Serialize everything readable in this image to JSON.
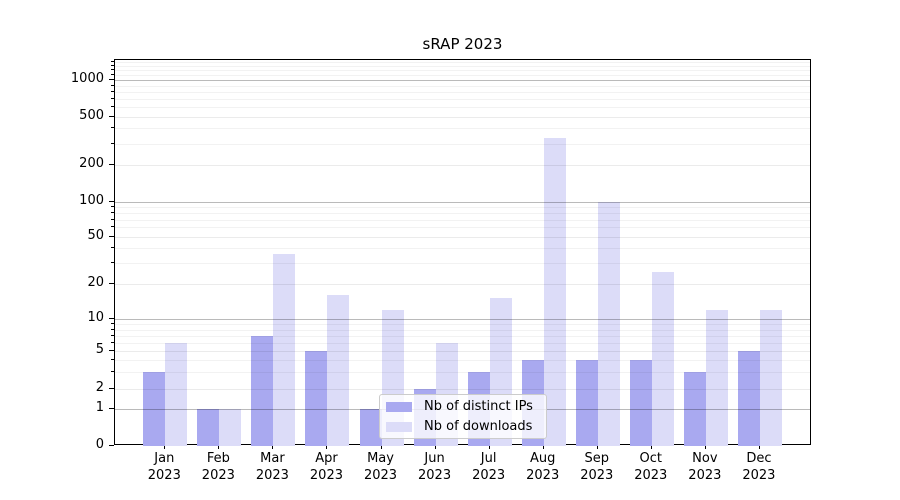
{
  "chart_data": {
    "type": "bar",
    "title": "sRAP 2023",
    "categories": [
      "Jan",
      "Feb",
      "Mar",
      "Apr",
      "May",
      "Jun",
      "Jul",
      "Aug",
      "Sep",
      "Oct",
      "Nov",
      "Dec"
    ],
    "year": "2023",
    "series": [
      {
        "name": "Nb of distinct IPs",
        "color": "#a9a9f0",
        "values": [
          3,
          1,
          7,
          5,
          1,
          2,
          3,
          4,
          4,
          4,
          3,
          5
        ]
      },
      {
        "name": "Nb of downloads",
        "color": "#dcdcf8",
        "values": [
          6,
          1,
          36,
          16,
          12,
          6,
          15,
          335,
          100,
          25,
          12,
          12
        ]
      }
    ],
    "xlabel": "",
    "ylabel": "",
    "y_scale": "symlog",
    "y_ticks": [
      0,
      1,
      2,
      5,
      10,
      20,
      50,
      100,
      200,
      500,
      1000
    ],
    "ylim": [
      0,
      1500
    ],
    "grid": "major-and-minor, drawn over bars",
    "legend_position": "lower center",
    "colors": {
      "bar_ips": "#a9a9f0",
      "bar_downloads": "#dcdcf8",
      "grid_major": "#bababa",
      "grid_minor": "#ededed",
      "axis": "#000000",
      "legend_border": "#cccccc"
    }
  }
}
